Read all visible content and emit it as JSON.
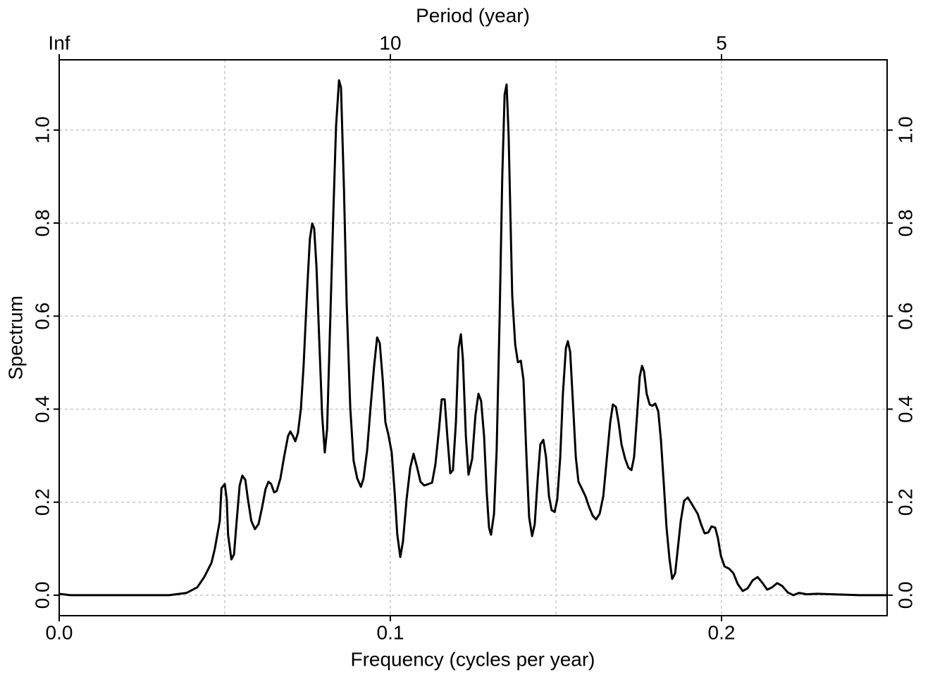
{
  "chart_data": {
    "type": "line",
    "title": "Period (year)",
    "x_label": "Frequency (cycles per year)",
    "y_label": "Spectrum",
    "xlim": [
      0,
      0.25
    ],
    "ylim": [
      -0.044,
      1.151
    ],
    "xticks": [
      {
        "value": 0,
        "label": "0.0"
      },
      0.1,
      0.2
    ],
    "top_ticks": [
      {
        "value": 0,
        "label": "Inf"
      },
      {
        "value": 0.1,
        "label": "10"
      },
      {
        "value": 0.2,
        "label": "5"
      }
    ],
    "xgrid": [
      0.05,
      0.1,
      0.15,
      0.2
    ],
    "yticks": [
      {
        "value": 0,
        "label": "0.0"
      },
      0.2,
      0.4,
      0.6,
      0.8,
      {
        "value": 1,
        "label": "1.0"
      }
    ],
    "grid": true,
    "series": [
      {
        "color": "#000000",
        "x": [
          0,
          0.0034,
          0.0332,
          0.0385,
          0.0417,
          0.0438,
          0.046,
          0.047,
          0.0485,
          0.049,
          0.05,
          0.0506,
          0.051,
          0.052,
          0.0528,
          0.0536,
          0.0545,
          0.0553,
          0.0562,
          0.057,
          0.058,
          0.0591,
          0.0602,
          0.0613,
          0.0623,
          0.0632,
          0.064,
          0.0649,
          0.0657,
          0.0668,
          0.0679,
          0.0691,
          0.0698,
          0.0706,
          0.0713,
          0.0721,
          0.073,
          0.0738,
          0.0749,
          0.0757,
          0.0764,
          0.077,
          0.0777,
          0.0785,
          0.0794,
          0.0802,
          0.0809,
          0.0817,
          0.0828,
          0.0836,
          0.0845,
          0.0851,
          0.086,
          0.0868,
          0.0879,
          0.0889,
          0.09,
          0.0911,
          0.0919,
          0.093,
          0.094,
          0.0951,
          0.096,
          0.0968,
          0.0977,
          0.0985,
          0.0994,
          0.1004,
          0.1013,
          0.1021,
          0.103,
          0.1038,
          0.1049,
          0.106,
          0.107,
          0.1081,
          0.1091,
          0.1102,
          0.1115,
          0.1126,
          0.1136,
          0.1147,
          0.1155,
          0.1164,
          0.1172,
          0.1181,
          0.1189,
          0.1198,
          0.1206,
          0.1213,
          0.1219,
          0.1228,
          0.1236,
          0.1247,
          0.1257,
          0.1266,
          0.1274,
          0.1283,
          0.1291,
          0.1298,
          0.1304,
          0.1313,
          0.1321,
          0.133,
          0.1338,
          0.1345,
          0.1351,
          0.1357,
          0.1368,
          0.1377,
          0.1385,
          0.1394,
          0.1402,
          0.1411,
          0.1419,
          0.1428,
          0.1436,
          0.1445,
          0.1453,
          0.1462,
          0.147,
          0.1479,
          0.1487,
          0.1496,
          0.1504,
          0.1513,
          0.1521,
          0.153,
          0.1536,
          0.1543,
          0.1551,
          0.156,
          0.1568,
          0.1579,
          0.1589,
          0.16,
          0.1611,
          0.1621,
          0.1632,
          0.1643,
          0.1653,
          0.1664,
          0.1672,
          0.1681,
          0.1689,
          0.1698,
          0.1709,
          0.1719,
          0.1728,
          0.1736,
          0.1745,
          0.1753,
          0.176,
          0.1766,
          0.1774,
          0.1783,
          0.1791,
          0.18,
          0.1809,
          0.1817,
          0.1826,
          0.1834,
          0.1843,
          0.1851,
          0.186,
          0.1868,
          0.1877,
          0.1887,
          0.1898,
          0.1906,
          0.1917,
          0.1928,
          0.1938,
          0.1949,
          0.196,
          0.197,
          0.1981,
          0.1989,
          0.1998,
          0.2009,
          0.2023,
          0.2036,
          0.2049,
          0.2064,
          0.2079,
          0.2094,
          0.2109,
          0.2123,
          0.2138,
          0.2153,
          0.2168,
          0.2183,
          0.22,
          0.2217,
          0.2234,
          0.2257,
          0.2289,
          0.2353,
          0.2417,
          0.25
        ],
        "values": [
          0.003,
          0,
          0,
          0.005,
          0.017,
          0.039,
          0.07,
          0.1,
          0.16,
          0.23,
          0.239,
          0.206,
          0.13,
          0.077,
          0.088,
          0.16,
          0.236,
          0.257,
          0.248,
          0.206,
          0.16,
          0.142,
          0.153,
          0.19,
          0.228,
          0.244,
          0.239,
          0.221,
          0.224,
          0.251,
          0.297,
          0.342,
          0.352,
          0.342,
          0.331,
          0.349,
          0.402,
          0.493,
          0.66,
          0.766,
          0.799,
          0.788,
          0.705,
          0.554,
          0.387,
          0.307,
          0.357,
          0.554,
          0.826,
          1.008,
          1.107,
          1.091,
          0.871,
          0.629,
          0.402,
          0.289,
          0.251,
          0.233,
          0.251,
          0.312,
          0.402,
          0.493,
          0.554,
          0.542,
          0.463,
          0.372,
          0.345,
          0.307,
          0.221,
          0.13,
          0.082,
          0.115,
          0.206,
          0.274,
          0.304,
          0.274,
          0.244,
          0.236,
          0.239,
          0.242,
          0.281,
          0.357,
          0.421,
          0.421,
          0.342,
          0.262,
          0.269,
          0.372,
          0.531,
          0.561,
          0.508,
          0.342,
          0.259,
          0.293,
          0.387,
          0.433,
          0.418,
          0.342,
          0.221,
          0.145,
          0.13,
          0.175,
          0.312,
          0.599,
          0.902,
          1.076,
          1.098,
          0.992,
          0.644,
          0.539,
          0.501,
          0.504,
          0.463,
          0.297,
          0.168,
          0.127,
          0.153,
          0.251,
          0.324,
          0.334,
          0.297,
          0.213,
          0.183,
          0.179,
          0.206,
          0.297,
          0.433,
          0.531,
          0.546,
          0.523,
          0.418,
          0.297,
          0.244,
          0.228,
          0.213,
          0.19,
          0.171,
          0.163,
          0.175,
          0.213,
          0.289,
          0.372,
          0.41,
          0.405,
          0.372,
          0.324,
          0.293,
          0.274,
          0.269,
          0.297,
          0.387,
          0.47,
          0.493,
          0.481,
          0.433,
          0.41,
          0.407,
          0.412,
          0.395,
          0.334,
          0.236,
          0.145,
          0.077,
          0.035,
          0.047,
          0.1,
          0.16,
          0.203,
          0.21,
          0.201,
          0.188,
          0.175,
          0.153,
          0.133,
          0.135,
          0.148,
          0.145,
          0.123,
          0.085,
          0.062,
          0.057,
          0.047,
          0.024,
          0.009,
          0.015,
          0.032,
          0.039,
          0.027,
          0.012,
          0.017,
          0.026,
          0.02,
          0.006,
          0,
          0.005,
          0.002,
          0.003,
          0.0015,
          0,
          0
        ]
      }
    ]
  }
}
